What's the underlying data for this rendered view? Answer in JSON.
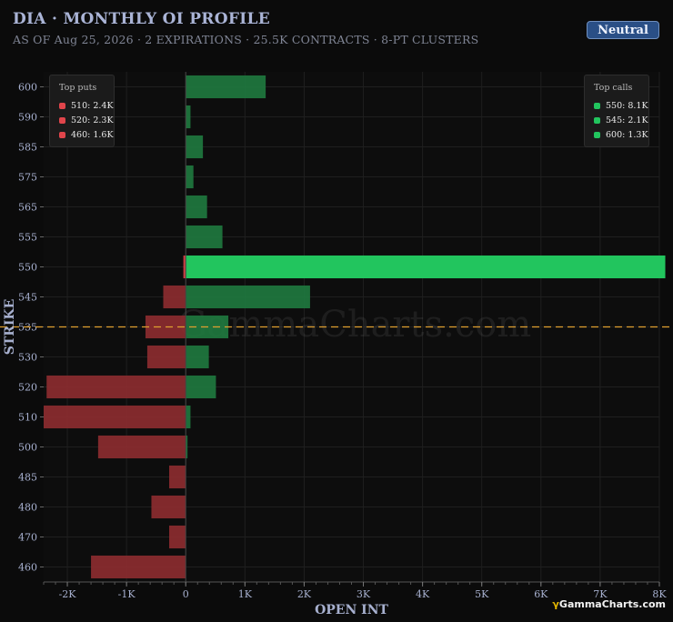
{
  "header": {
    "title": "DIA · MONTHLY OI PROFILE",
    "subtitle": "AS OF Aug 25, 2026 · 2 EXPIRATIONS · 25.5K CONTRACTS · 8-PT CLUSTERS",
    "badge": "Neutral"
  },
  "brand": {
    "glyph": "γ",
    "text": "GammaCharts.com"
  },
  "watermark": "GammaCharts.com",
  "colors": {
    "background": "#0b0b0b",
    "call": "#1f7a3f",
    "call_highlight": "#22c55e",
    "put": "#8e2c30",
    "put_highlight": "#e0454b",
    "spot_line": "#e0a030",
    "grid": "#1f1f1f"
  },
  "legend_puts": {
    "title": "Top puts",
    "items": [
      {
        "label": "510: 2.4K"
      },
      {
        "label": "520: 2.3K"
      },
      {
        "label": "460: 1.6K"
      }
    ]
  },
  "legend_calls": {
    "title": "Top calls",
    "items": [
      {
        "label": "550: 8.1K"
      },
      {
        "label": "545: 2.1K"
      },
      {
        "label": "600: 1.3K"
      }
    ]
  },
  "chart_data": {
    "type": "bar",
    "orientation": "horizontal",
    "xlabel": "OPEN INT",
    "ylabel": "STRIKE",
    "xlim": [
      -2400,
      8000
    ],
    "xticks": [
      {
        "value": -2000,
        "label": "-2K"
      },
      {
        "value": -1000,
        "label": "-1K"
      },
      {
        "value": 0,
        "label": "0"
      },
      {
        "value": 1000,
        "label": "1K"
      },
      {
        "value": 2000,
        "label": "2K"
      },
      {
        "value": 3000,
        "label": "3K"
      },
      {
        "value": 4000,
        "label": "4K"
      },
      {
        "value": 5000,
        "label": "5K"
      },
      {
        "value": 6000,
        "label": "6K"
      },
      {
        "value": 7000,
        "label": "7K"
      },
      {
        "value": 8000,
        "label": "8K"
      }
    ],
    "categories": [
      "600",
      "590",
      "585",
      "575",
      "565",
      "555",
      "550",
      "545",
      "535",
      "530",
      "520",
      "510",
      "500",
      "485",
      "480",
      "470",
      "460"
    ],
    "series": [
      {
        "name": "calls",
        "values": [
          1350,
          80,
          290,
          130,
          360,
          620,
          8100,
          2100,
          720,
          390,
          510,
          80,
          30,
          0,
          0,
          0,
          0
        ]
      },
      {
        "name": "puts",
        "values": [
          0,
          0,
          0,
          0,
          0,
          0,
          40,
          380,
          680,
          650,
          2350,
          2400,
          1480,
          280,
          580,
          280,
          1600
        ]
      }
    ],
    "highlight_strike": "550",
    "spot_strike": "535",
    "grid": true,
    "legend": [
      "top-left",
      "top-right"
    ]
  }
}
